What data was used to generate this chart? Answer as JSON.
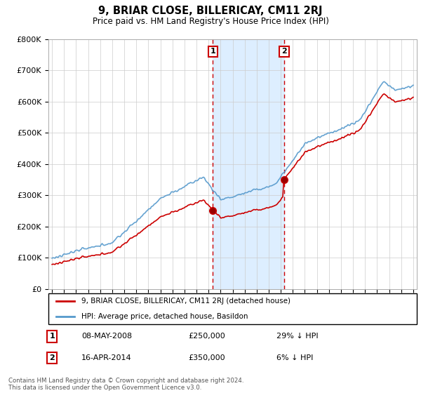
{
  "title": "9, BRIAR CLOSE, BILLERICAY, CM11 2RJ",
  "subtitle": "Price paid vs. HM Land Registry's House Price Index (HPI)",
  "legend_line1": "9, BRIAR CLOSE, BILLERICAY, CM11 2RJ (detached house)",
  "legend_line2": "HPI: Average price, detached house, Basildon",
  "transaction1": {
    "num": "1",
    "date": "08-MAY-2008",
    "price": "£250,000",
    "hpi": "29% ↓ HPI"
  },
  "transaction2": {
    "num": "2",
    "date": "16-APR-2014",
    "price": "£350,000",
    "hpi": "6% ↓ HPI"
  },
  "footnote": "Contains HM Land Registry data © Crown copyright and database right 2024.\nThis data is licensed under the Open Government Licence v3.0.",
  "hpi_color": "#5599cc",
  "price_color": "#cc0000",
  "shade_color": "#ddeeff",
  "ylim": [
    0,
    800000
  ],
  "yticks": [
    0,
    100000,
    200000,
    300000,
    400000,
    500000,
    600000,
    700000,
    800000
  ],
  "background_color": "#ffffff",
  "grid_color": "#cccccc",
  "t1_year": 2008.354,
  "t2_year": 2014.288,
  "t1_price": 250000,
  "t2_price": 350000
}
